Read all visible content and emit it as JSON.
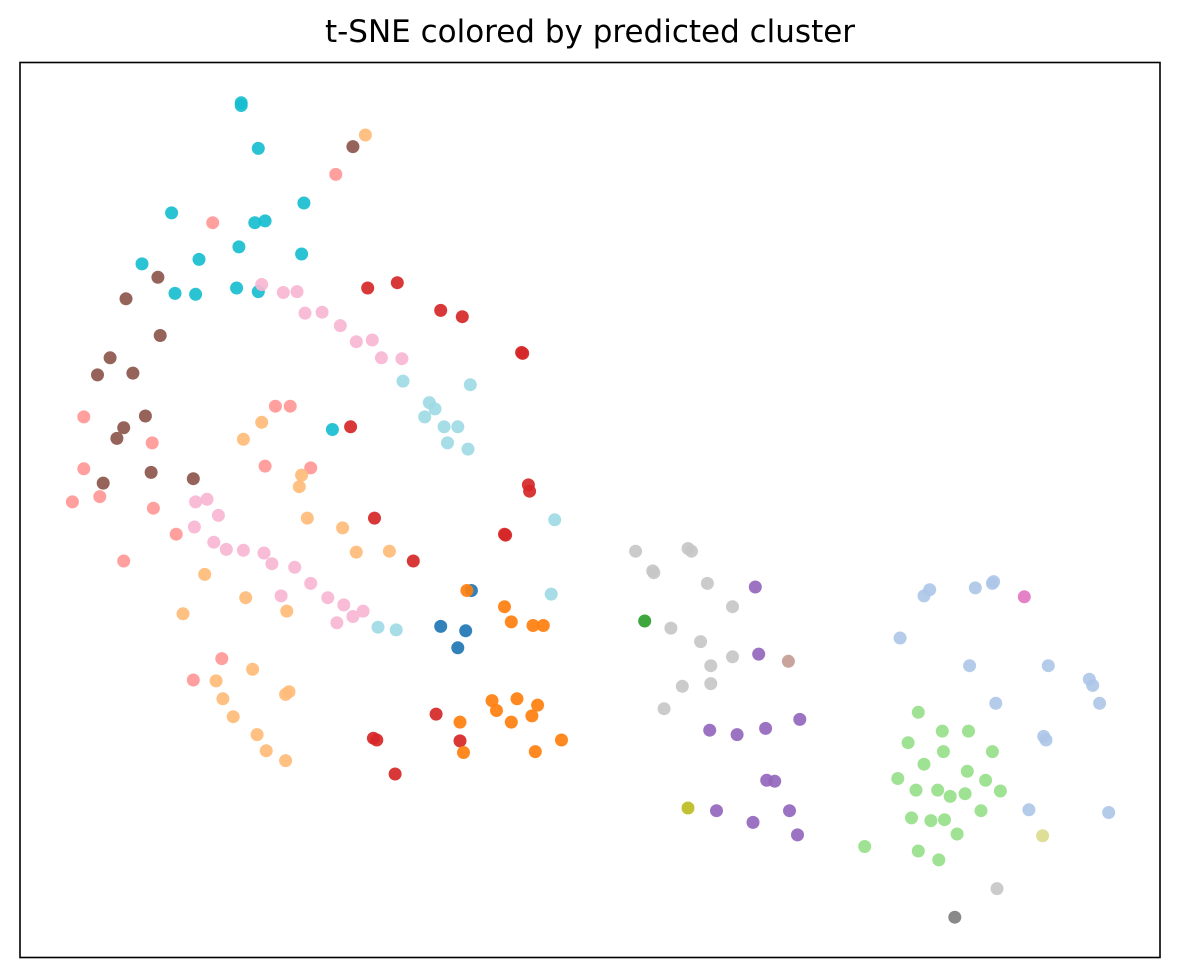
{
  "chart_data": {
    "type": "scatter",
    "title": "t-SNE colored by predicted cluster",
    "xlabel": "",
    "ylabel": "",
    "xlim": [
      0,
      1000
    ],
    "ylim": [
      0,
      1000
    ],
    "grid": false,
    "legend": "none",
    "axis_ticks": false,
    "point_alpha": 0.92,
    "series": [
      {
        "color": "#17becf",
        "points": [
          [
            194,
            952
          ],
          [
            194,
            955
          ],
          [
            209,
            904
          ],
          [
            249,
            843
          ],
          [
            133,
            832
          ],
          [
            206,
            821
          ],
          [
            215,
            823
          ],
          [
            192,
            794
          ],
          [
            107,
            775
          ],
          [
            157,
            780
          ],
          [
            247,
            786
          ],
          [
            136,
            742
          ],
          [
            154,
            741
          ],
          [
            190,
            748
          ],
          [
            209,
            744
          ],
          [
            274,
            590
          ]
        ]
      },
      {
        "color": "#ff9896",
        "points": [
          [
            277,
            875
          ],
          [
            169,
            821
          ],
          [
            56,
            604
          ],
          [
            224,
            616
          ],
          [
            237,
            616
          ],
          [
            116,
            575
          ],
          [
            56,
            546
          ],
          [
            70,
            515
          ],
          [
            46,
            509
          ],
          [
            117,
            502
          ],
          [
            137,
            473
          ],
          [
            91,
            443
          ],
          [
            215,
            549
          ],
          [
            255,
            547
          ],
          [
            177,
            334
          ],
          [
            152,
            310
          ]
        ]
      },
      {
        "color": "#8c564b",
        "points": [
          [
            292,
            906
          ],
          [
            121,
            760
          ],
          [
            93,
            736
          ],
          [
            123,
            695
          ],
          [
            79,
            670
          ],
          [
            68,
            651
          ],
          [
            99,
            653
          ],
          [
            110,
            605
          ],
          [
            91,
            592
          ],
          [
            85,
            580
          ],
          [
            115,
            542
          ],
          [
            152,
            535
          ],
          [
            73,
            530
          ]
        ]
      },
      {
        "color": "#ffbb78",
        "points": [
          [
            303,
            919
          ],
          [
            196,
            579
          ],
          [
            212,
            598
          ],
          [
            245,
            526
          ],
          [
            247,
            539
          ],
          [
            252,
            491
          ],
          [
            283,
            480
          ],
          [
            295,
            453
          ],
          [
            324,
            454
          ],
          [
            162,
            428
          ],
          [
            198,
            402
          ],
          [
            234,
            387
          ],
          [
            143,
            384
          ],
          [
            204,
            322
          ],
          [
            172,
            309
          ],
          [
            178,
            289
          ],
          [
            236,
            297
          ],
          [
            187,
            269
          ],
          [
            208,
            249
          ],
          [
            216,
            231
          ],
          [
            233,
            220
          ],
          [
            233,
            294
          ]
        ]
      },
      {
        "color": "#f7b6d2",
        "points": [
          [
            212,
            752
          ],
          [
            231,
            743
          ],
          [
            243,
            744
          ],
          [
            250,
            720
          ],
          [
            265,
            721
          ],
          [
            281,
            706
          ],
          [
            295,
            688
          ],
          [
            309,
            690
          ],
          [
            317,
            670
          ],
          [
            335,
            669
          ],
          [
            164,
            512
          ],
          [
            154,
            509
          ],
          [
            174,
            494
          ],
          [
            153,
            481
          ],
          [
            170,
            464
          ],
          [
            181,
            456
          ],
          [
            196,
            455
          ],
          [
            214,
            452
          ],
          [
            221,
            440
          ],
          [
            241,
            436
          ],
          [
            229,
            404
          ],
          [
            255,
            418
          ],
          [
            270,
            402
          ],
          [
            284,
            394
          ],
          [
            292,
            381
          ],
          [
            301,
            387
          ],
          [
            278,
            374
          ]
        ]
      },
      {
        "color": "#d62728",
        "points": [
          [
            305,
            748
          ],
          [
            331,
            754
          ],
          [
            369,
            723
          ],
          [
            388,
            716
          ],
          [
            440,
            676
          ],
          [
            441,
            675
          ],
          [
            290,
            593
          ],
          [
            446,
            528
          ],
          [
            447,
            521
          ],
          [
            311,
            491
          ],
          [
            425,
            473
          ],
          [
            426,
            472
          ],
          [
            345,
            443
          ],
          [
            365,
            272
          ],
          [
            310,
            245
          ],
          [
            313,
            243
          ],
          [
            386,
            242
          ],
          [
            329,
            205
          ]
        ]
      },
      {
        "color": "#9edae5",
        "points": [
          [
            336,
            644
          ],
          [
            395,
            640
          ],
          [
            359,
            620
          ],
          [
            364,
            613
          ],
          [
            355,
            604
          ],
          [
            372,
            593
          ],
          [
            384,
            593
          ],
          [
            375,
            575
          ],
          [
            393,
            568
          ],
          [
            469,
            489
          ],
          [
            466,
            406
          ],
          [
            314,
            369
          ],
          [
            330,
            366
          ]
        ]
      },
      {
        "color": "#1f77b4",
        "points": [
          [
            396,
            410
          ],
          [
            369,
            370
          ],
          [
            391,
            365
          ],
          [
            384,
            346
          ]
        ]
      },
      {
        "color": "#ff7f0e",
        "points": [
          [
            392,
            410
          ],
          [
            425,
            392
          ],
          [
            431,
            375
          ],
          [
            450,
            371
          ],
          [
            459,
            371
          ],
          [
            414,
            287
          ],
          [
            436,
            289
          ],
          [
            454,
            282
          ],
          [
            418,
            276
          ],
          [
            431,
            263
          ],
          [
            449,
            270
          ],
          [
            386,
            263
          ],
          [
            389,
            229
          ],
          [
            452,
            230
          ],
          [
            475,
            243
          ]
        ]
      },
      {
        "color": "#c7c7c7",
        "points": [
          [
            540,
            454
          ],
          [
            586,
            457
          ],
          [
            589,
            454
          ],
          [
            555,
            432
          ],
          [
            556,
            430
          ],
          [
            603,
            418
          ],
          [
            625,
            392
          ],
          [
            571,
            368
          ],
          [
            597,
            353
          ],
          [
            625,
            336
          ],
          [
            606,
            326
          ],
          [
            606,
            306
          ],
          [
            581,
            303
          ],
          [
            565,
            278
          ],
          [
            857,
            77
          ]
        ]
      },
      {
        "color": "#9467bd",
        "points": [
          [
            645,
            414
          ],
          [
            648,
            339
          ],
          [
            605,
            254
          ],
          [
            629,
            249
          ],
          [
            654,
            256
          ],
          [
            684,
            266
          ],
          [
            655,
            198
          ],
          [
            662,
            197
          ],
          [
            611,
            164
          ],
          [
            643,
            151
          ],
          [
            675,
            164
          ],
          [
            682,
            137
          ]
        ]
      },
      {
        "color": "#2ca02c",
        "points": [
          [
            548,
            376
          ]
        ]
      },
      {
        "color": "#c49c94",
        "points": [
          [
            674,
            331
          ]
        ]
      },
      {
        "color": "#bcbd22",
        "points": [
          [
            586,
            167
          ]
        ]
      },
      {
        "color": "#aec7e8",
        "points": [
          [
            853,
            418
          ],
          [
            854,
            420
          ],
          [
            798,
            411
          ],
          [
            838,
            413
          ],
          [
            793,
            404
          ],
          [
            772,
            357
          ],
          [
            833,
            326
          ],
          [
            902,
            326
          ],
          [
            938,
            311
          ],
          [
            941,
            304
          ],
          [
            947,
            284
          ],
          [
            856,
            284
          ],
          [
            898,
            247
          ],
          [
            900,
            243
          ],
          [
            885,
            165
          ],
          [
            955,
            162
          ]
        ]
      },
      {
        "color": "#e377c2",
        "points": [
          [
            881,
            403
          ]
        ]
      },
      {
        "color": "#98df8a",
        "points": [
          [
            788,
            274
          ],
          [
            809,
            253
          ],
          [
            832,
            253
          ],
          [
            779,
            240
          ],
          [
            810,
            230
          ],
          [
            853,
            230
          ],
          [
            793,
            216
          ],
          [
            831,
            208
          ],
          [
            847,
            198
          ],
          [
            770,
            200
          ],
          [
            786,
            187
          ],
          [
            805,
            187
          ],
          [
            829,
            183
          ],
          [
            816,
            180
          ],
          [
            860,
            186
          ],
          [
            843,
            164
          ],
          [
            782,
            156
          ],
          [
            799,
            153
          ],
          [
            811,
            154
          ],
          [
            822,
            138
          ],
          [
            741,
            124
          ],
          [
            788,
            119
          ],
          [
            806,
            109
          ]
        ]
      },
      {
        "color": "#dbdb8d",
        "points": [
          [
            897,
            136
          ]
        ]
      },
      {
        "color": "#7f7f7f",
        "points": [
          [
            820,
            45
          ]
        ]
      }
    ]
  }
}
